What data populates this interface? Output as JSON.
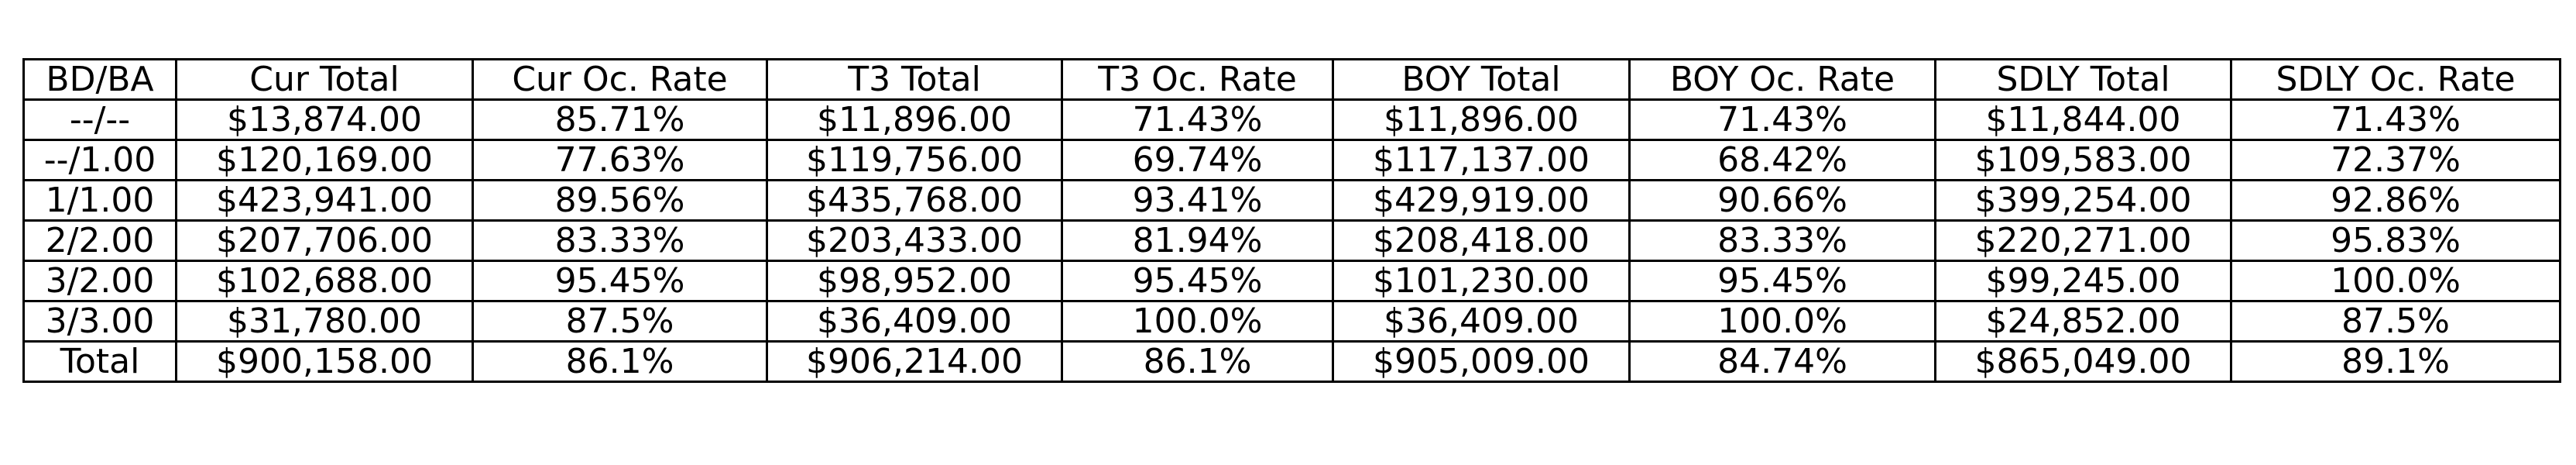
{
  "table": {
    "headers": [
      "BD/BA",
      "Cur Total",
      "Cur Oc. Rate",
      "T3 Total",
      "T3 Oc. Rate",
      "BOY Total",
      "BOY Oc. Rate",
      "SDLY Total",
      "SDLY Oc. Rate"
    ],
    "rows": [
      [
        "--/--",
        "$13,874.00",
        "85.71%",
        "$11,896.00",
        "71.43%",
        "$11,896.00",
        "71.43%",
        "$11,844.00",
        "71.43%"
      ],
      [
        "--/1.00",
        "$120,169.00",
        "77.63%",
        "$119,756.00",
        "69.74%",
        "$117,137.00",
        "68.42%",
        "$109,583.00",
        "72.37%"
      ],
      [
        "1/1.00",
        "$423,941.00",
        "89.56%",
        "$435,768.00",
        "93.41%",
        "$429,919.00",
        "90.66%",
        "$399,254.00",
        "92.86%"
      ],
      [
        "2/2.00",
        "$207,706.00",
        "83.33%",
        "$203,433.00",
        "81.94%",
        "$208,418.00",
        "83.33%",
        "$220,271.00",
        "95.83%"
      ],
      [
        "3/2.00",
        "$102,688.00",
        "95.45%",
        "$98,952.00",
        "95.45%",
        "$101,230.00",
        "95.45%",
        "$99,245.00",
        "100.0%"
      ],
      [
        "3/3.00",
        "$31,780.00",
        "87.5%",
        "$36,409.00",
        "100.0%",
        "$36,409.00",
        "100.0%",
        "$24,852.00",
        "87.5%"
      ],
      [
        "Total",
        "$900,158.00",
        "86.1%",
        "$906,214.00",
        "86.1%",
        "$905,009.00",
        "84.74%",
        "$865,049.00",
        "89.1%"
      ]
    ]
  }
}
